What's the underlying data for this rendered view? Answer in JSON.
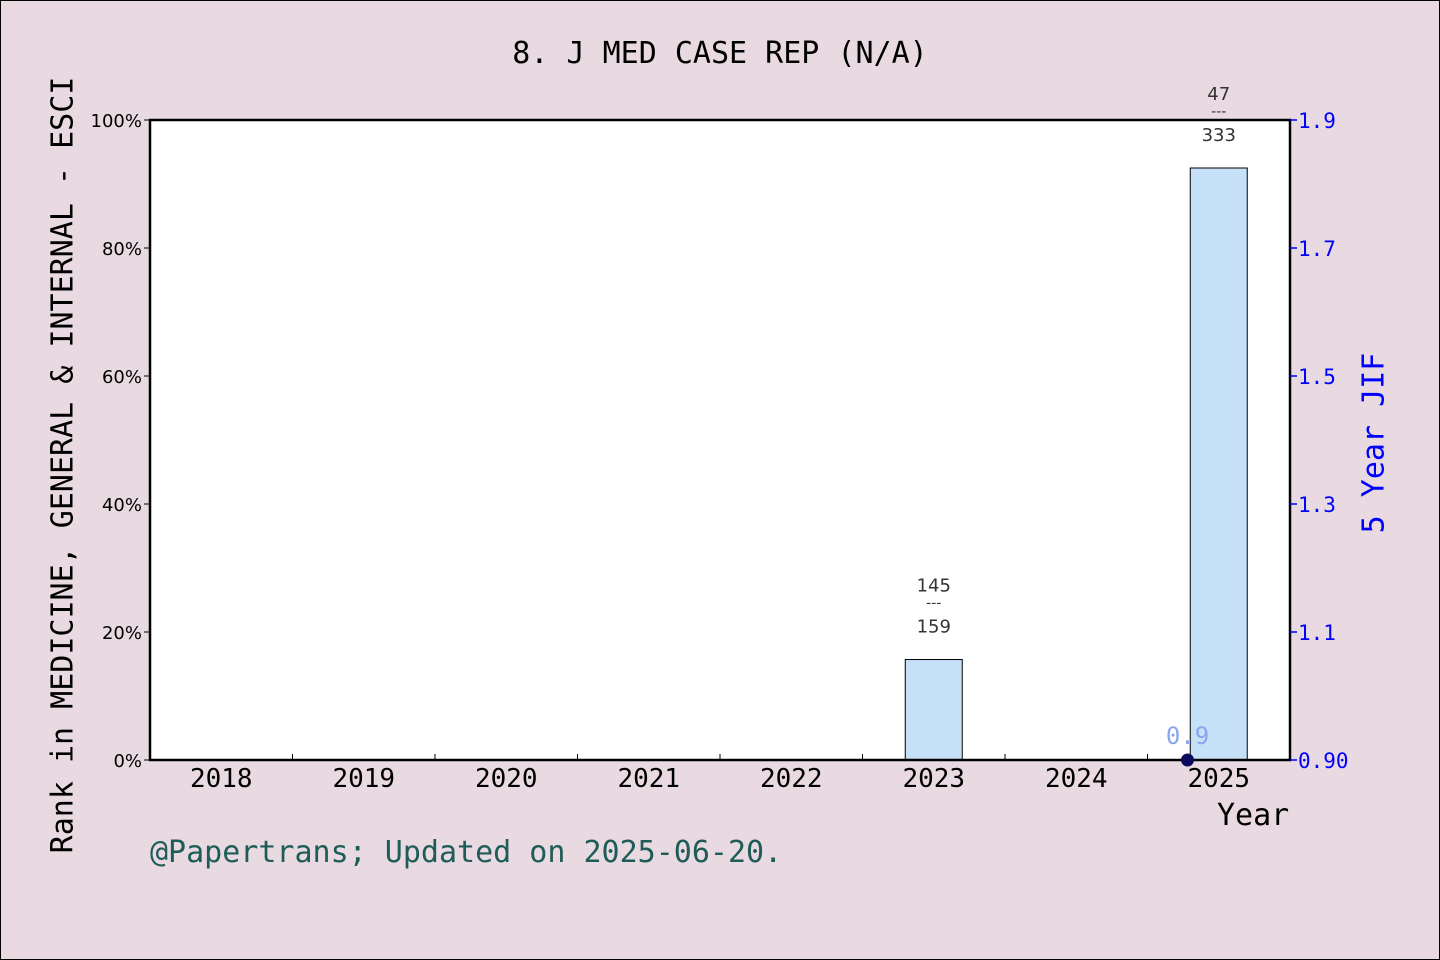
{
  "title": "8. J MED CASE REP (N/A)",
  "footer": "@Papertrans; Updated on 2025-06-20.",
  "colors": {
    "background": "#e9dae2",
    "bar_fill": "#c6e0f7",
    "right_axis": "#0000ff",
    "footer": "#1e5c58",
    "jif_label": "#8aa4f0",
    "jif_point": "#0a0a60"
  },
  "chart_data": {
    "type": "bar",
    "xlabel": "Year",
    "ylabel": "Rank in MEDICINE, GENERAL & INTERNAL - ESCI",
    "ylabel_right": "5 Year JIF",
    "categories": [
      "2018",
      "2019",
      "2020",
      "2021",
      "2022",
      "2023",
      "2024",
      "2025"
    ],
    "ylim": [
      0,
      100
    ],
    "yticks": [
      "0%",
      "20%",
      "40%",
      "60%",
      "80%",
      "100%"
    ],
    "y2lim": [
      0.9,
      1.9
    ],
    "y2ticks": [
      "0.90",
      "1.1",
      "1.3",
      "1.5",
      "1.7",
      "1.9"
    ],
    "bars": [
      {
        "year": "2023",
        "value": 15.7,
        "rank": "145",
        "total": "159"
      },
      {
        "year": "2025",
        "value": 92.5,
        "rank": "47",
        "total": "333"
      }
    ],
    "jif_points": [
      {
        "year": "2025",
        "value": 0.9,
        "label": "0.9"
      }
    ],
    "separator": "---"
  }
}
